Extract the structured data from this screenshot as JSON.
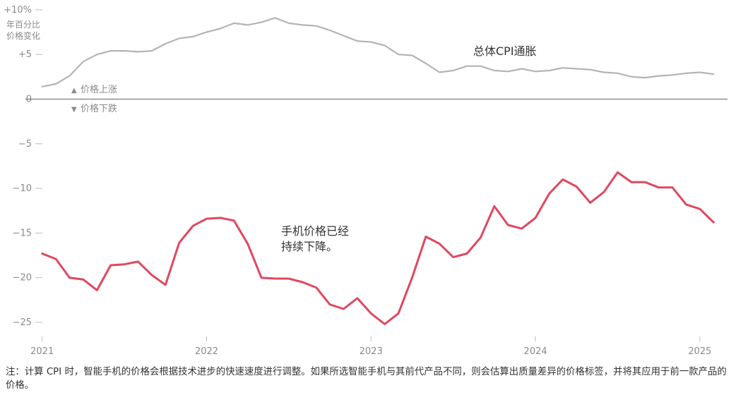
{
  "chart_data": {
    "type": "line",
    "y_unit_label": [
      "年百分比",
      "价格变化"
    ],
    "ylim": [
      -27,
      10
    ],
    "y_ticks": [
      {
        "value": 10,
        "label": "+10%"
      },
      {
        "value": 5,
        "label": "+5"
      },
      {
        "value": 0,
        "label": "0"
      },
      {
        "value": -5,
        "label": "−5"
      },
      {
        "value": -10,
        "label": "−10"
      },
      {
        "value": -15,
        "label": "−15"
      },
      {
        "value": -20,
        "label": "−20"
      },
      {
        "value": -25,
        "label": "−25"
      }
    ],
    "x_ticks": [
      {
        "value": "2021-01",
        "label": "2021"
      },
      {
        "value": "2022-01",
        "label": "2022"
      },
      {
        "value": "2023-01",
        "label": "2023"
      },
      {
        "value": "2024-01",
        "label": "2024"
      },
      {
        "value": "2025-01",
        "label": "2025"
      }
    ],
    "x_range": [
      "2020-12",
      "2025-02"
    ],
    "grid": false,
    "months": [
      "2021-01",
      "2021-02",
      "2021-03",
      "2021-04",
      "2021-05",
      "2021-06",
      "2021-07",
      "2021-08",
      "2021-09",
      "2021-10",
      "2021-11",
      "2021-12",
      "2022-01",
      "2022-02",
      "2022-03",
      "2022-04",
      "2022-05",
      "2022-06",
      "2022-07",
      "2022-08",
      "2022-09",
      "2022-10",
      "2022-11",
      "2022-12",
      "2023-01",
      "2023-02",
      "2023-03",
      "2023-04",
      "2023-05",
      "2023-06",
      "2023-07",
      "2023-08",
      "2023-09",
      "2023-10",
      "2023-11",
      "2023-12",
      "2024-01",
      "2024-02",
      "2024-03",
      "2024-04",
      "2024-05",
      "2024-06",
      "2024-07",
      "2024-08",
      "2024-09",
      "2024-10",
      "2024-11",
      "2024-12",
      "2025-01",
      "2025-02"
    ],
    "series": [
      {
        "name": "总体CPI通胀",
        "color": "#b4b4b4",
        "values": [
          1.4,
          1.7,
          2.6,
          4.2,
          5.0,
          5.4,
          5.4,
          5.3,
          5.4,
          6.2,
          6.8,
          7.0,
          7.5,
          7.9,
          8.5,
          8.3,
          8.6,
          9.1,
          8.5,
          8.3,
          8.2,
          7.7,
          7.1,
          6.5,
          6.4,
          6.0,
          5.0,
          4.9,
          4.0,
          3.0,
          3.2,
          3.7,
          3.7,
          3.2,
          3.1,
          3.4,
          3.1,
          3.2,
          3.5,
          3.4,
          3.3,
          3.0,
          2.9,
          2.5,
          2.4,
          2.6,
          2.7,
          2.9,
          3.0,
          2.8
        ]
      },
      {
        "name": "手机价格已经持续下降。",
        "color": "#e0485e",
        "values": [
          -17.3,
          -17.9,
          -20.0,
          -20.2,
          -21.4,
          -18.6,
          -18.5,
          -18.2,
          -19.7,
          -20.8,
          -16.1,
          -14.2,
          -13.4,
          -13.3,
          -13.6,
          -16.2,
          -20.0,
          -20.1,
          -20.1,
          -20.5,
          -21.1,
          -23.0,
          -23.5,
          -22.3,
          -24.0,
          -25.2,
          -24.0,
          -20.0,
          -15.4,
          -16.2,
          -17.7,
          -17.3,
          -15.5,
          -12.0,
          -14.1,
          -14.5,
          -13.3,
          -10.6,
          -9.0,
          -9.8,
          -11.6,
          -10.4,
          -8.2,
          -9.3,
          -9.3,
          -9.9,
          -9.9,
          -11.8,
          -12.3,
          -13.8
        ]
      }
    ],
    "annotations": {
      "cpi": "总体CPI通胀",
      "phones_line1": "手机价格已经",
      "phones_line2": "持续下降。"
    },
    "legend": {
      "up": "价格上涨",
      "down": "价格下跌",
      "up_marker": "▲",
      "down_marker": "▼"
    }
  },
  "note": "注：计算 CPI 时，智能手机的价格会根据技术进步的快速速度进行调整。如果所选智能手机与其前代产品不同，则会估算出质量差异的价格标签，并将其应用于前一款产品的价格。"
}
